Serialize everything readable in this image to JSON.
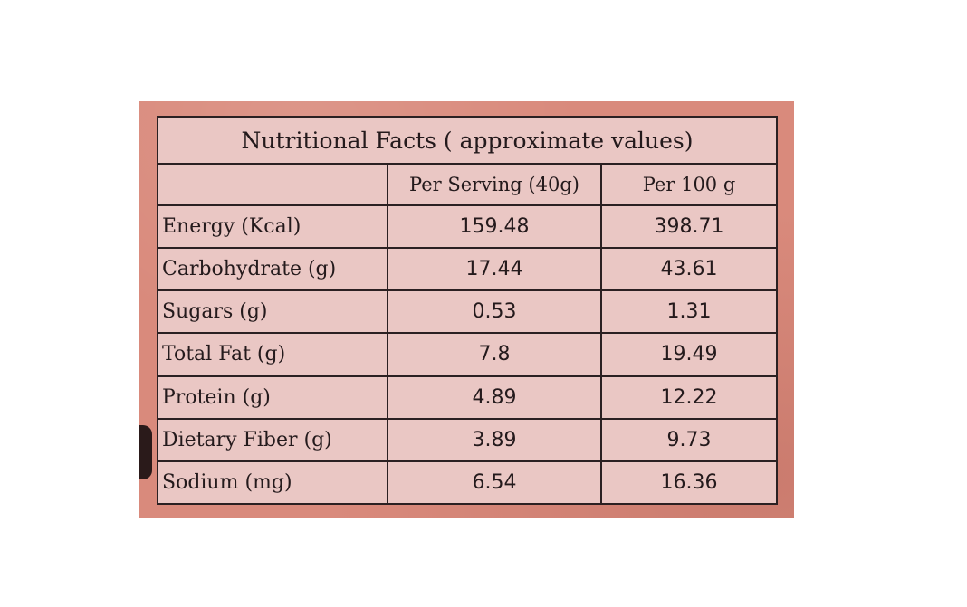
{
  "table": {
    "title": "Nutritional Facts ( approximate values)",
    "header": {
      "blank": "",
      "per_serving": "Per Serving (40g)",
      "per_100g": "Per 100 g"
    },
    "rows": [
      {
        "label": "Energy (Kcal)",
        "per_serving": "159.48",
        "per_100g": "398.71"
      },
      {
        "label": "Carbohydrate (g)",
        "per_serving": "17.44",
        "per_100g": "43.61"
      },
      {
        "label": "Sugars (g)",
        "per_serving": "0.53",
        "per_100g": "1.31"
      },
      {
        "label": "Total Fat (g)",
        "per_serving": "7.8",
        "per_100g": "19.49"
      },
      {
        "label": "Protein (g)",
        "per_serving": "4.89",
        "per_100g": "12.22"
      },
      {
        "label": "Dietary Fiber (g)",
        "per_serving": "3.89",
        "per_100g": "9.73"
      },
      {
        "label": "Sodium (mg)",
        "per_serving": "6.54",
        "per_100g": "16.36"
      }
    ]
  },
  "colors": {
    "background": "#ffffff",
    "packaging": "#d98a7c",
    "table_fill": "#eac7c4",
    "ink": "#241a1c"
  }
}
